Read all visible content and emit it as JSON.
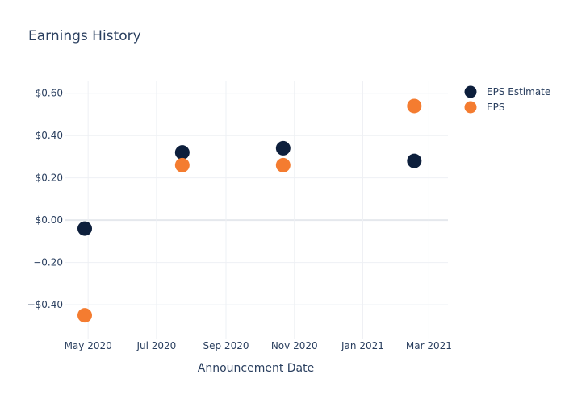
{
  "chart_data": {
    "type": "scatter",
    "title": "Earnings History",
    "xlabel": "Announcement Date",
    "ylabel": "",
    "x_type": "date",
    "xlim": [
      "2020-04-10",
      "2021-03-18"
    ],
    "ylim": [
      -0.56,
      0.66
    ],
    "x_ticks": [
      {
        "value": "2020-05-01",
        "label": "May 2020"
      },
      {
        "value": "2020-07-01",
        "label": "Jul 2020"
      },
      {
        "value": "2020-09-01",
        "label": "Sep 2020"
      },
      {
        "value": "2020-11-01",
        "label": "Nov 2020"
      },
      {
        "value": "2021-01-01",
        "label": "Jan 2021"
      },
      {
        "value": "2021-03-01",
        "label": "Mar 2021"
      }
    ],
    "y_ticks": [
      {
        "value": 0.6,
        "label": "$0.60"
      },
      {
        "value": 0.4,
        "label": "$0.40"
      },
      {
        "value": 0.2,
        "label": "$0.20"
      },
      {
        "value": 0.0,
        "label": "$0.00"
      },
      {
        "value": -0.2,
        "label": "−0.20"
      },
      {
        "value": -0.4,
        "label": "−$0.40"
      }
    ],
    "grid": true,
    "legend_position": "top-right",
    "series": [
      {
        "name": "EPS Estimate",
        "color": "#0d1f3c",
        "points": [
          {
            "x": "2020-04-28",
            "y": -0.04
          },
          {
            "x": "2020-07-24",
            "y": 0.32
          },
          {
            "x": "2020-10-22",
            "y": 0.34
          },
          {
            "x": "2021-02-16",
            "y": 0.28
          }
        ]
      },
      {
        "name": "EPS",
        "color": "#f47c30",
        "points": [
          {
            "x": "2020-04-28",
            "y": -0.45
          },
          {
            "x": "2020-07-24",
            "y": 0.26
          },
          {
            "x": "2020-10-22",
            "y": 0.26
          },
          {
            "x": "2021-02-16",
            "y": 0.54
          }
        ]
      }
    ]
  }
}
